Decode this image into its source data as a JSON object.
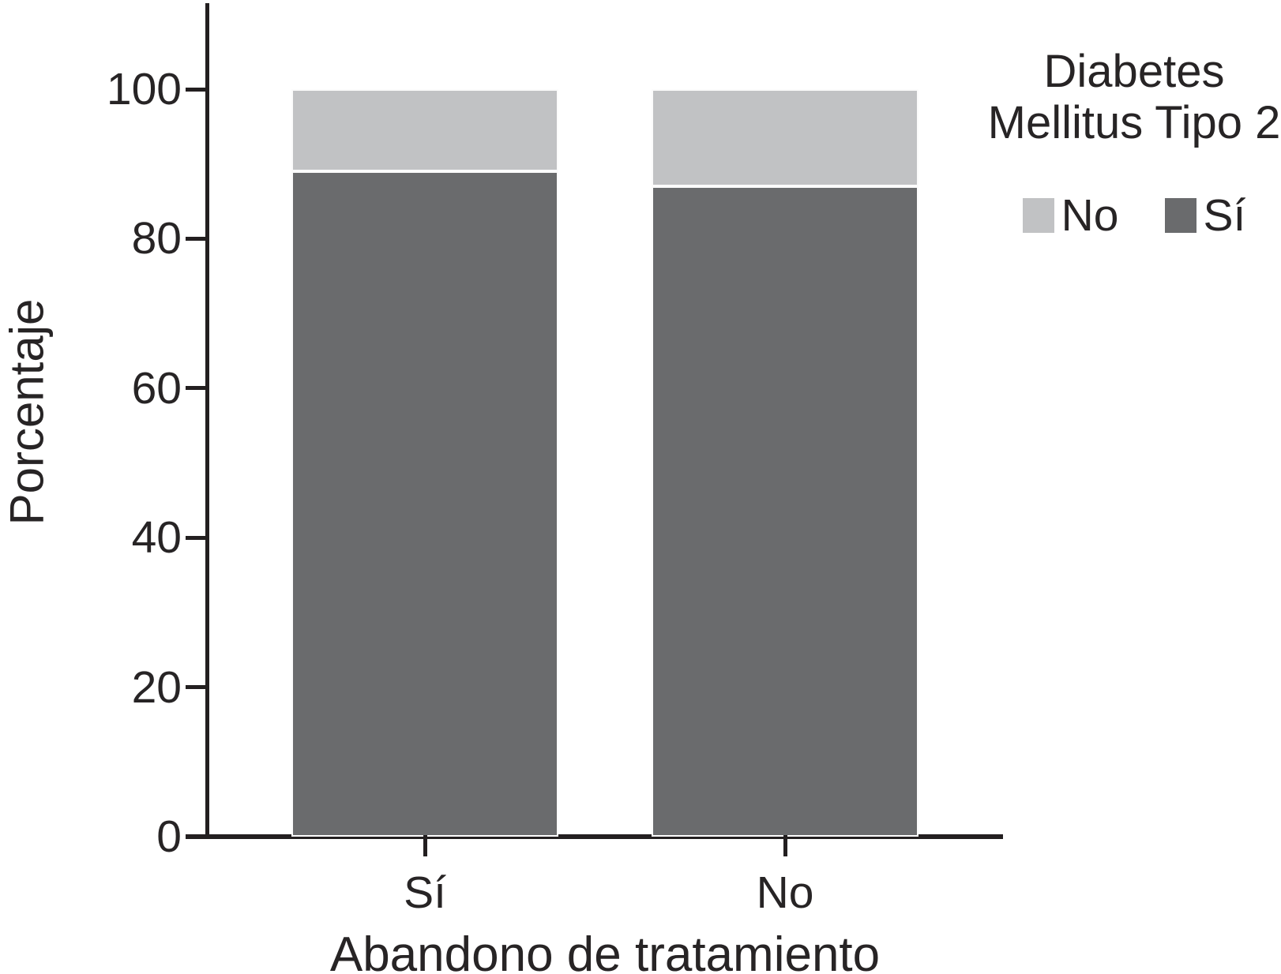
{
  "chart_data": {
    "type": "bar",
    "stacking": "percent",
    "title": "",
    "xlabel": "Abandono de tratamiento",
    "ylabel": "Porcentaje",
    "categories": [
      "Sí",
      "No"
    ],
    "series": [
      {
        "name": "Sí",
        "color": "#6a6b6d",
        "values": [
          89,
          87
        ]
      },
      {
        "name": "No",
        "color": "#c1c2c4",
        "values": [
          11,
          13
        ]
      }
    ],
    "ylim": [
      0,
      100
    ],
    "yticks": [
      0,
      20,
      40,
      60,
      80,
      100
    ],
    "grid": false,
    "legend_position": "top-right"
  },
  "legend": {
    "title_lines": [
      "Diabetes",
      "Mellitus Tipo 2"
    ],
    "entries": [
      {
        "label": "No",
        "color": "#c1c2c4"
      },
      {
        "label": "Sí",
        "color": "#6a6b6d"
      }
    ]
  },
  "colors": {
    "axis": "#231f20",
    "text": "#272425",
    "background": "#ffffff"
  }
}
